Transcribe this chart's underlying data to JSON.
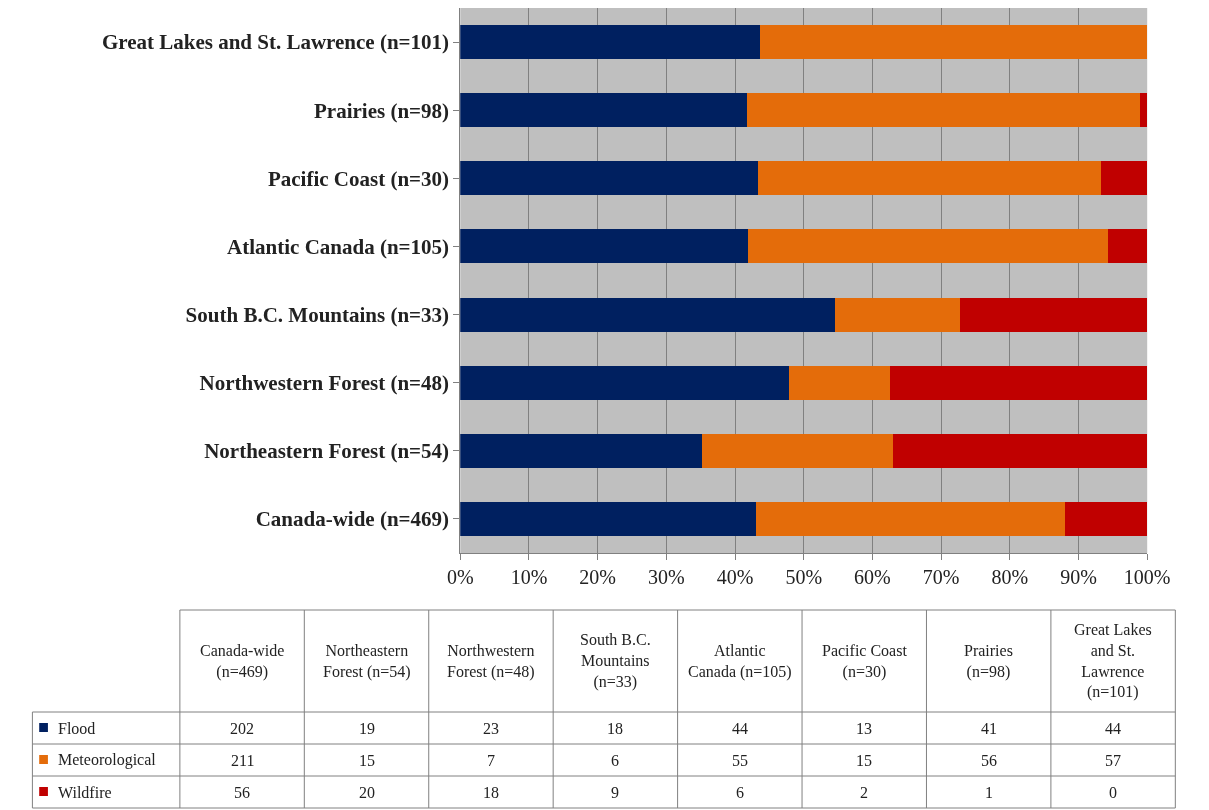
{
  "chart_data": [
    {
      "type": "bar",
      "orientation": "horizontal",
      "stacked": true,
      "categories": [
        "Great Lakes and St. Lawrence (n=101)",
        "Prairies (n=98)",
        "Pacific Coast (n=30)",
        "Atlantic Canada (n=105)",
        "South B.C. Mountains (n=33)",
        "Northwestern Forest (n=48)",
        "Northeastern Forest (n=54)",
        "Canada-wide (n=469)"
      ],
      "series": [
        {
          "color": "#002060",
          "values": [
            43.6,
            41.8,
            43.3,
            41.9,
            54.5,
            47.9,
            35.2,
            43.1
          ]
        },
        {
          "color": "#e46c0a",
          "values": [
            56.4,
            57.1,
            50.0,
            52.4,
            18.2,
            14.6,
            27.8,
            45.0
          ]
        },
        {
          "color": "#c00000",
          "values": [
            0,
            1.0,
            6.7,
            5.7,
            27.3,
            37.5,
            37.0,
            11.9
          ]
        }
      ],
      "xlim": [
        0,
        100
      ],
      "xticks": [
        {
          "value": 0,
          "label": "0%"
        },
        {
          "value": 10,
          "label": "10%"
        },
        {
          "value": 20,
          "label": "20%"
        },
        {
          "value": 30,
          "label": "30%"
        },
        {
          "value": 40,
          "label": "40%"
        },
        {
          "value": 50,
          "label": "50%"
        },
        {
          "value": 60,
          "label": "60%"
        },
        {
          "value": 70,
          "label": "70%"
        },
        {
          "value": 80,
          "label": "80%"
        },
        {
          "value": 90,
          "label": "90%"
        },
        {
          "value": 100,
          "label": "100%"
        }
      ],
      "grid": "x"
    },
    {
      "type": "other",
      "categories": [
        "Canada-wide (n=469)",
        "Northeastern Forest (n=54)",
        "Northwestern Forest (n=48)",
        "South B.C. Mountains (n=33)",
        "Atlantic Canada (n=105)",
        "Pacific Coast (n=30)",
        "Prairies (n=98)",
        "Great Lakes and St. Lawrence (n=101)"
      ],
      "series": [
        {
          "name": "Flood",
          "color": "#002060",
          "values": [
            202,
            19,
            23,
            18,
            44,
            13,
            41,
            44
          ]
        },
        {
          "name": "Meteorological",
          "color": "#e46c0a",
          "values": [
            211,
            15,
            7,
            6,
            55,
            15,
            56,
            57
          ]
        },
        {
          "name": "Wildfire",
          "color": "#c00000",
          "values": [
            56,
            20,
            18,
            9,
            6,
            2,
            1,
            0
          ]
        }
      ],
      "data_labels": true,
      "legend": "left"
    }
  ]
}
